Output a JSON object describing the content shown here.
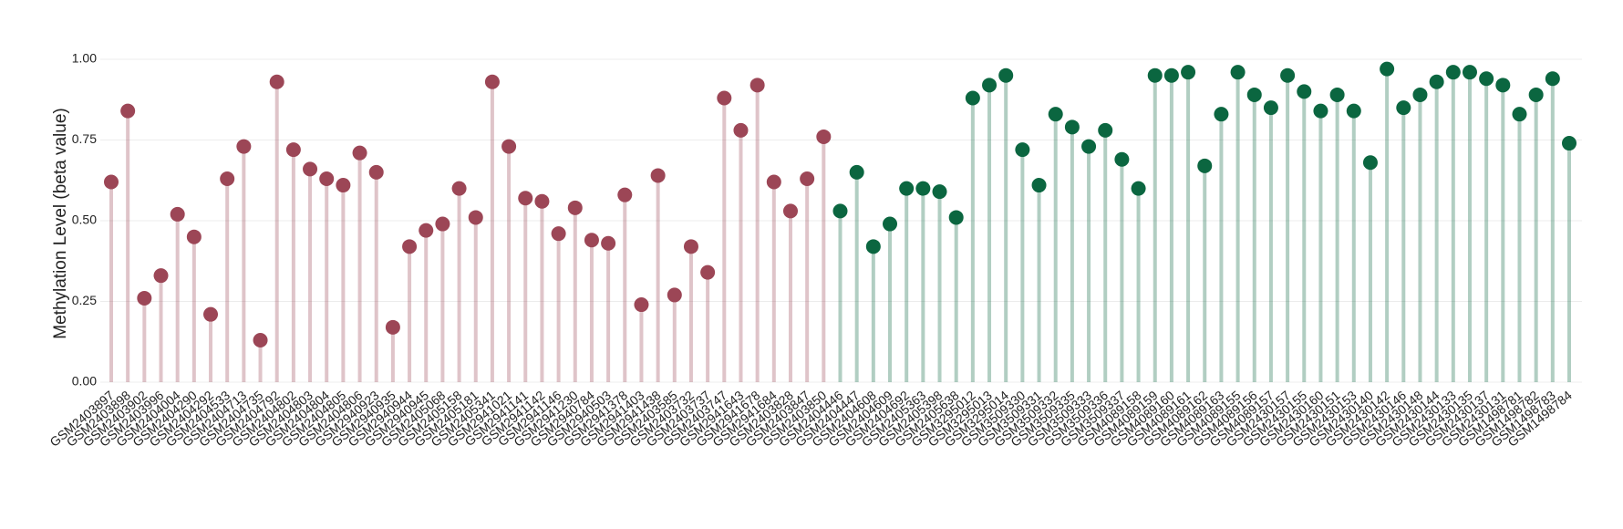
{
  "chart_data": {
    "type": "lollipop",
    "y_label": "Methylation Level (beta value)",
    "categories": [
      "GSM2403897",
      "GSM2403898",
      "GSM2403902",
      "GSM2403996",
      "GSM2404004",
      "GSM2404290",
      "GSM2404292",
      "GSM2404533",
      "GSM2404713",
      "GSM2404735",
      "GSM2404792",
      "GSM2404802",
      "GSM2404803",
      "GSM2404804",
      "GSM2404805",
      "GSM2404806",
      "GSM2940923",
      "GSM2940935",
      "GSM2940944",
      "GSM2940945",
      "GSM2405068",
      "GSM2405158",
      "GSM2405181",
      "GSM2405341",
      "GSM2941021",
      "GSM2941141",
      "GSM2941142",
      "GSM2941146",
      "GSM2941230",
      "GSM2940784",
      "GSM2940503",
      "GSM2941378",
      "GSM2941403",
      "GSM2941438",
      "GSM2403585",
      "GSM2403732",
      "GSM2403737",
      "GSM2403747",
      "GSM2941643",
      "GSM2941678",
      "GSM2941684",
      "GSM2403828",
      "GSM2403847",
      "GSM2403850",
      "GSM2404446",
      "GSM2404447",
      "GSM2404608",
      "GSM2404609",
      "GSM2404692",
      "GSM2405363",
      "GSM2405398",
      "GSM2405638",
      "GSM3295012",
      "GSM3295013",
      "GSM3295014",
      "GSM3509330",
      "GSM3509331",
      "GSM3509332",
      "GSM3509335",
      "GSM3509333",
      "GSM3509336",
      "GSM3509337",
      "GSM4089158",
      "GSM4089159",
      "GSM4089160",
      "GSM4089161",
      "GSM4089162",
      "GSM4089163",
      "GSM4089155",
      "GSM4089156",
      "GSM4089157",
      "GSM2430157",
      "GSM2430155",
      "GSM2430160",
      "GSM2430151",
      "GSM2430153",
      "GSM2430140",
      "GSM2430142",
      "GSM2430146",
      "GSM2430148",
      "GSM2430144",
      "GSM2430133",
      "GSM2430135",
      "GSM2430137",
      "GSM2430131",
      "GSM1498781",
      "GSM1498782",
      "GSM1498783",
      "GSM1498784"
    ],
    "values": [
      0.62,
      0.84,
      0.26,
      0.33,
      0.52,
      0.45,
      0.21,
      0.63,
      0.73,
      0.13,
      0.93,
      0.72,
      0.66,
      0.63,
      0.61,
      0.71,
      0.65,
      0.17,
      0.42,
      0.47,
      0.49,
      0.6,
      0.51,
      0.93,
      0.73,
      0.57,
      0.56,
      0.46,
      0.54,
      0.44,
      0.43,
      0.58,
      0.24,
      0.64,
      0.27,
      0.42,
      0.34,
      0.88,
      0.78,
      0.92,
      0.62,
      0.53,
      0.63,
      0.76,
      0.53,
      0.65,
      0.42,
      0.49,
      0.6,
      0.6,
      0.59,
      0.51,
      0.88,
      0.92,
      0.95,
      0.72,
      0.61,
      0.83,
      0.79,
      0.73,
      0.78,
      0.69,
      0.6,
      0.95,
      0.95,
      0.96,
      0.67,
      0.83,
      0.96,
      0.89,
      0.85,
      0.95,
      0.9,
      0.84,
      0.89,
      0.84,
      0.68,
      0.97,
      0.85,
      0.89,
      0.93,
      0.96,
      0.96,
      0.94,
      0.92,
      0.83,
      0.89,
      0.94,
      0.74
    ],
    "colors": [
      "#9c4656",
      "#9c4656",
      "#9c4656",
      "#9c4656",
      "#9c4656",
      "#9c4656",
      "#9c4656",
      "#9c4656",
      "#9c4656",
      "#9c4656",
      "#9c4656",
      "#9c4656",
      "#9c4656",
      "#9c4656",
      "#9c4656",
      "#9c4656",
      "#9c4656",
      "#9c4656",
      "#9c4656",
      "#9c4656",
      "#9c4656",
      "#9c4656",
      "#9c4656",
      "#9c4656",
      "#9c4656",
      "#9c4656",
      "#9c4656",
      "#9c4656",
      "#9c4656",
      "#9c4656",
      "#9c4656",
      "#9c4656",
      "#9c4656",
      "#9c4656",
      "#9c4656",
      "#9c4656",
      "#9c4656",
      "#9c4656",
      "#9c4656",
      "#9c4656",
      "#9c4656",
      "#9c4656",
      "#9c4656",
      "#9c4656",
      "#0b6640",
      "#0b6640",
      "#0b6640",
      "#0b6640",
      "#0b6640",
      "#0b6640",
      "#0b6640",
      "#0b6640",
      "#0b6640",
      "#0b6640",
      "#0b6640",
      "#0b6640",
      "#0b6640",
      "#0b6640",
      "#0b6640",
      "#0b6640",
      "#0b6640",
      "#0b6640",
      "#0b6640",
      "#0b6640",
      "#0b6640",
      "#0b6640",
      "#0b6640",
      "#0b6640",
      "#0b6640",
      "#0b6640",
      "#0b6640",
      "#0b6640",
      "#0b6640",
      "#0b6640",
      "#0b6640",
      "#0b6640",
      "#0b6640",
      "#0b6640",
      "#0b6640",
      "#0b6640",
      "#0b6640",
      "#0b6640",
      "#0b6640",
      "#0b6640",
      "#0b6640",
      "#0b6640",
      "#0b6640",
      "#0b6640",
      "#0b6640"
    ],
    "ylim": [
      0,
      1
    ],
    "yticks": [
      {
        "value": 0,
        "label": "0.00"
      },
      {
        "value": 0.25,
        "label": "0.25"
      },
      {
        "value": 0.5,
        "label": "0.50"
      },
      {
        "value": 0.75,
        "label": "0.75"
      },
      {
        "value": 1,
        "label": "1.00"
      }
    ],
    "grid": true
  }
}
